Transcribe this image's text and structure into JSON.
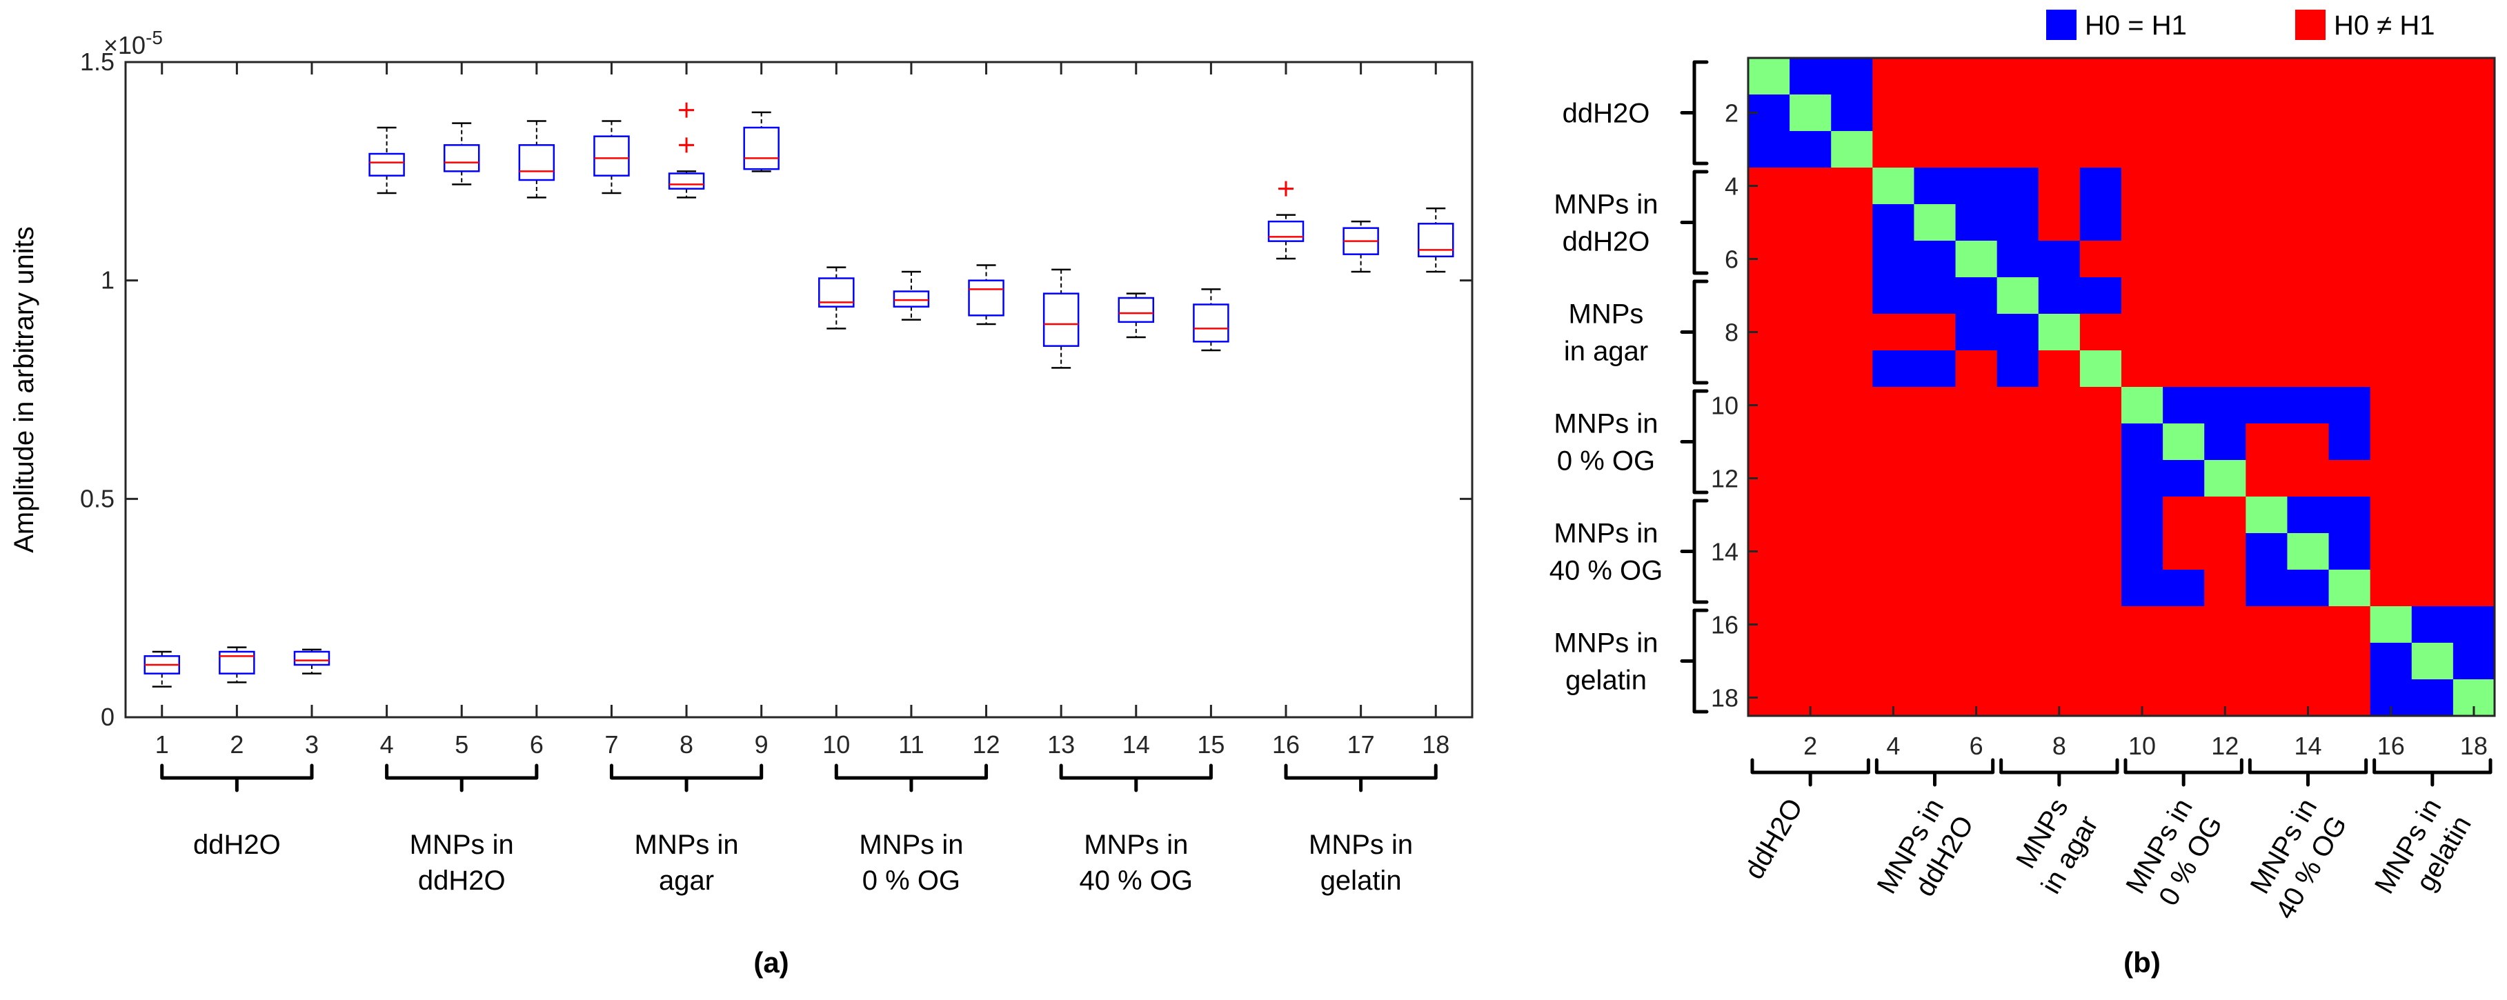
{
  "chart_data": [
    {
      "type": "box",
      "panel_label": "(a)",
      "ylabel": "Amplitude in arbitrary units",
      "y_exponent_label": "×10",
      "y_exponent_power": "-5",
      "ylim": [
        0,
        1.5
      ],
      "yticks": [
        0,
        0.5,
        1,
        1.5
      ],
      "ytick_labels": [
        "0",
        "0.5",
        "1",
        "1.5"
      ],
      "categories": [
        "1",
        "2",
        "3",
        "4",
        "5",
        "6",
        "7",
        "8",
        "9",
        "10",
        "11",
        "12",
        "13",
        "14",
        "15",
        "16",
        "17",
        "18"
      ],
      "boxes": [
        {
          "whislo": 0.07,
          "q1": 0.1,
          "med": 0.12,
          "q3": 0.14,
          "whishi": 0.15,
          "fliers": []
        },
        {
          "whislo": 0.08,
          "q1": 0.1,
          "med": 0.14,
          "q3": 0.15,
          "whishi": 0.16,
          "fliers": []
        },
        {
          "whislo": 0.1,
          "q1": 0.12,
          "med": 0.13,
          "q3": 0.15,
          "whishi": 0.155,
          "fliers": []
        },
        {
          "whislo": 1.2,
          "q1": 1.24,
          "med": 1.27,
          "q3": 1.29,
          "whishi": 1.35,
          "fliers": []
        },
        {
          "whislo": 1.22,
          "q1": 1.25,
          "med": 1.27,
          "q3": 1.31,
          "whishi": 1.36,
          "fliers": []
        },
        {
          "whislo": 1.19,
          "q1": 1.23,
          "med": 1.25,
          "q3": 1.31,
          "whishi": 1.365,
          "fliers": []
        },
        {
          "whislo": 1.2,
          "q1": 1.24,
          "med": 1.28,
          "q3": 1.33,
          "whishi": 1.365,
          "fliers": []
        },
        {
          "whislo": 1.19,
          "q1": 1.21,
          "med": 1.22,
          "q3": 1.245,
          "whishi": 1.25,
          "fliers": [
            1.31,
            1.39
          ]
        },
        {
          "whislo": 1.25,
          "q1": 1.255,
          "med": 1.28,
          "q3": 1.35,
          "whishi": 1.385,
          "fliers": []
        },
        {
          "whislo": 0.89,
          "q1": 0.94,
          "med": 0.95,
          "q3": 1.005,
          "whishi": 1.03,
          "fliers": []
        },
        {
          "whislo": 0.91,
          "q1": 0.94,
          "med": 0.955,
          "q3": 0.975,
          "whishi": 1.02,
          "fliers": []
        },
        {
          "whislo": 0.9,
          "q1": 0.92,
          "med": 0.98,
          "q3": 1.0,
          "whishi": 1.035,
          "fliers": []
        },
        {
          "whislo": 0.8,
          "q1": 0.85,
          "med": 0.9,
          "q3": 0.97,
          "whishi": 1.025,
          "fliers": []
        },
        {
          "whislo": 0.87,
          "q1": 0.905,
          "med": 0.925,
          "q3": 0.96,
          "whishi": 0.97,
          "fliers": []
        },
        {
          "whislo": 0.84,
          "q1": 0.86,
          "med": 0.89,
          "q3": 0.945,
          "whishi": 0.98,
          "fliers": []
        },
        {
          "whislo": 1.05,
          "q1": 1.09,
          "med": 1.1,
          "q3": 1.135,
          "whishi": 1.15,
          "fliers": [
            1.21
          ]
        },
        {
          "whislo": 1.02,
          "q1": 1.06,
          "med": 1.09,
          "q3": 1.12,
          "whishi": 1.135,
          "fliers": []
        },
        {
          "whislo": 1.02,
          "q1": 1.055,
          "med": 1.07,
          "q3": 1.13,
          "whishi": 1.165,
          "fliers": []
        }
      ],
      "groups": [
        {
          "lines": [
            "ddH2O"
          ],
          "start": 1,
          "end": 3
        },
        {
          "lines": [
            "MNPs in",
            "ddH2O"
          ],
          "start": 4,
          "end": 6
        },
        {
          "lines": [
            "MNPs in",
            "agar"
          ],
          "start": 7,
          "end": 9
        },
        {
          "lines": [
            "MNPs in",
            "0 % OG"
          ],
          "start": 10,
          "end": 12
        },
        {
          "lines": [
            "MNPs in",
            "40 % OG"
          ],
          "start": 13,
          "end": 15
        },
        {
          "lines": [
            "MNPs in",
            "gelatin"
          ],
          "start": 16,
          "end": 18
        }
      ]
    },
    {
      "type": "heatmap",
      "panel_label": "(b)",
      "size": 18,
      "tick_labels": [
        "2",
        "4",
        "6",
        "8",
        "10",
        "12",
        "14",
        "16",
        "18"
      ],
      "legend": [
        {
          "label": "H0 = H1",
          "color": "#0000ff"
        },
        {
          "label": "H0 ≠ H1",
          "color": "#ff0000"
        }
      ],
      "colors": {
        "same": "#0000ff",
        "different": "#ff0000",
        "diagonal": "#80ff80"
      },
      "groups": [
        {
          "lines": [
            "ddH2O"
          ],
          "start": 1,
          "end": 3
        },
        {
          "lines": [
            "MNPs in",
            "ddH2O"
          ],
          "start": 4,
          "end": 6
        },
        {
          "lines": [
            "MNPs",
            "in agar"
          ],
          "start": 7,
          "end": 9
        },
        {
          "lines": [
            "MNPs in",
            "0 % OG"
          ],
          "start": 10,
          "end": 12
        },
        {
          "lines": [
            "MNPs in",
            "40 % OG"
          ],
          "start": 13,
          "end": 15
        },
        {
          "lines": [
            "MNPs in",
            "gelatin"
          ],
          "start": 16,
          "end": 18
        }
      ],
      "matrix": [
        [
          2,
          1,
          1,
          0,
          0,
          0,
          0,
          0,
          0,
          0,
          0,
          0,
          0,
          0,
          0,
          0,
          0,
          0
        ],
        [
          1,
          2,
          1,
          0,
          0,
          0,
          0,
          0,
          0,
          0,
          0,
          0,
          0,
          0,
          0,
          0,
          0,
          0
        ],
        [
          1,
          1,
          2,
          0,
          0,
          0,
          0,
          0,
          0,
          0,
          0,
          0,
          0,
          0,
          0,
          0,
          0,
          0
        ],
        [
          0,
          0,
          0,
          2,
          1,
          1,
          1,
          0,
          1,
          0,
          0,
          0,
          0,
          0,
          0,
          0,
          0,
          0
        ],
        [
          0,
          0,
          0,
          1,
          2,
          1,
          1,
          0,
          1,
          0,
          0,
          0,
          0,
          0,
          0,
          0,
          0,
          0
        ],
        [
          0,
          0,
          0,
          1,
          1,
          2,
          1,
          1,
          0,
          0,
          0,
          0,
          0,
          0,
          0,
          0,
          0,
          0
        ],
        [
          0,
          0,
          0,
          1,
          1,
          1,
          2,
          1,
          1,
          0,
          0,
          0,
          0,
          0,
          0,
          0,
          0,
          0
        ],
        [
          0,
          0,
          0,
          0,
          0,
          1,
          1,
          2,
          0,
          0,
          0,
          0,
          0,
          0,
          0,
          0,
          0,
          0
        ],
        [
          0,
          0,
          0,
          1,
          1,
          0,
          1,
          0,
          2,
          0,
          0,
          0,
          0,
          0,
          0,
          0,
          0,
          0
        ],
        [
          0,
          0,
          0,
          0,
          0,
          0,
          0,
          0,
          0,
          2,
          1,
          1,
          1,
          1,
          1,
          0,
          0,
          0
        ],
        [
          0,
          0,
          0,
          0,
          0,
          0,
          0,
          0,
          0,
          1,
          2,
          1,
          0,
          0,
          1,
          0,
          0,
          0
        ],
        [
          0,
          0,
          0,
          0,
          0,
          0,
          0,
          0,
          0,
          1,
          1,
          2,
          0,
          0,
          0,
          0,
          0,
          0
        ],
        [
          0,
          0,
          0,
          0,
          0,
          0,
          0,
          0,
          0,
          1,
          0,
          0,
          2,
          1,
          1,
          0,
          0,
          0
        ],
        [
          0,
          0,
          0,
          0,
          0,
          0,
          0,
          0,
          0,
          1,
          0,
          0,
          1,
          2,
          1,
          0,
          0,
          0
        ],
        [
          0,
          0,
          0,
          0,
          0,
          0,
          0,
          0,
          0,
          1,
          1,
          0,
          1,
          1,
          2,
          0,
          0,
          0
        ],
        [
          0,
          0,
          0,
          0,
          0,
          0,
          0,
          0,
          0,
          0,
          0,
          0,
          0,
          0,
          0,
          2,
          1,
          1
        ],
        [
          0,
          0,
          0,
          0,
          0,
          0,
          0,
          0,
          0,
          0,
          0,
          0,
          0,
          0,
          0,
          1,
          2,
          1
        ],
        [
          0,
          0,
          0,
          0,
          0,
          0,
          0,
          0,
          0,
          0,
          0,
          0,
          0,
          0,
          0,
          1,
          1,
          2
        ]
      ]
    }
  ]
}
